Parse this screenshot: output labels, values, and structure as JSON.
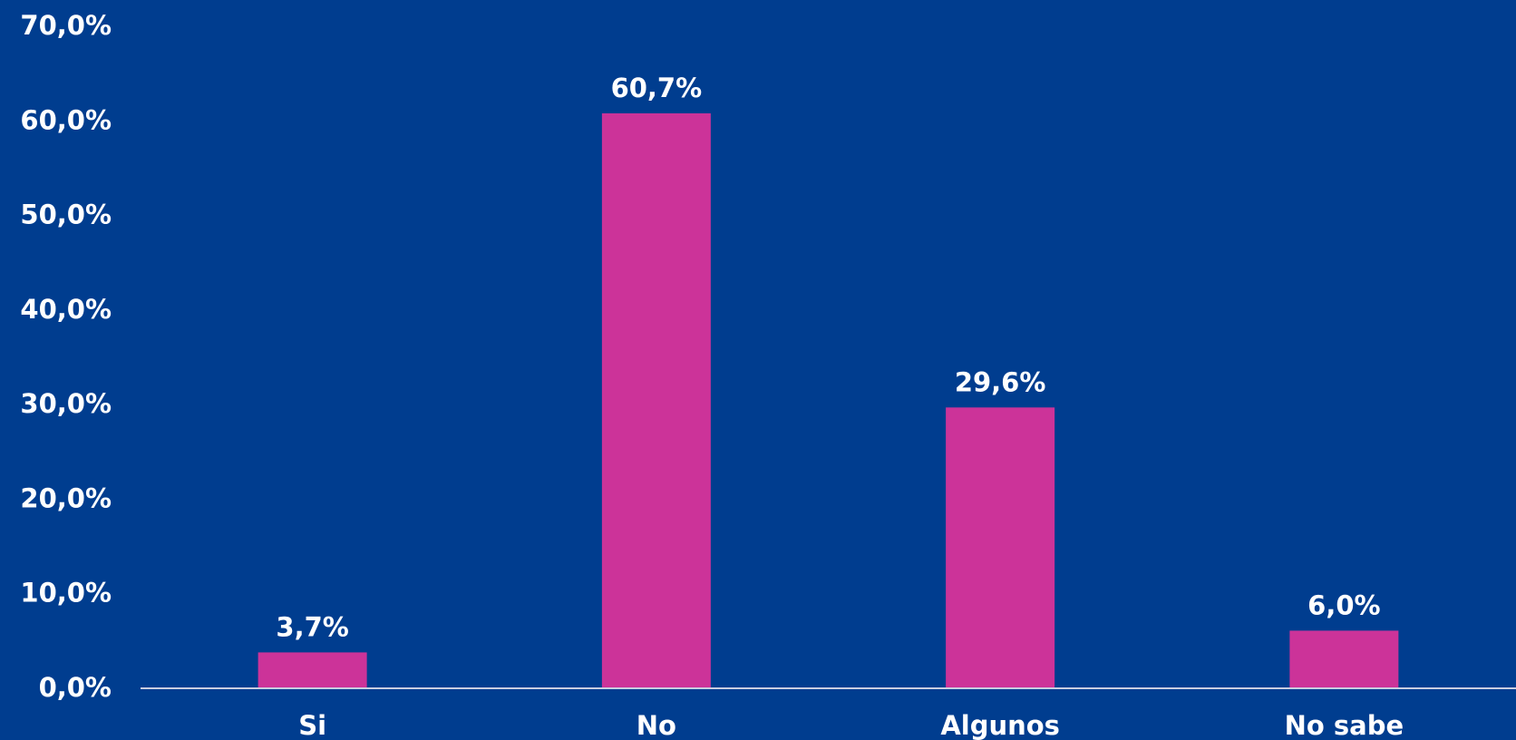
{
  "colors": {
    "background": "#003d8f",
    "bar": "#cc3399",
    "text": "#ffffff",
    "axis": "#c8cde0"
  },
  "chart_data": {
    "type": "bar",
    "title": "",
    "xlabel": "",
    "ylabel": "",
    "categories": [
      "Si",
      "No",
      "Algunos",
      "No sabe"
    ],
    "values": [
      3.7,
      60.7,
      29.6,
      6.0
    ],
    "value_labels": [
      "3,7%",
      "60,7%",
      "29,6%",
      "6,0%"
    ],
    "ylim": [
      0,
      70
    ],
    "yticks": [
      0,
      10,
      20,
      30,
      40,
      50,
      60,
      70
    ],
    "ytick_labels": [
      "0,0%",
      "10,0%",
      "20,0%",
      "30,0%",
      "40,0%",
      "50,0%",
      "60,0%",
      "70,0%"
    ],
    "grid": false,
    "legend": "none"
  }
}
